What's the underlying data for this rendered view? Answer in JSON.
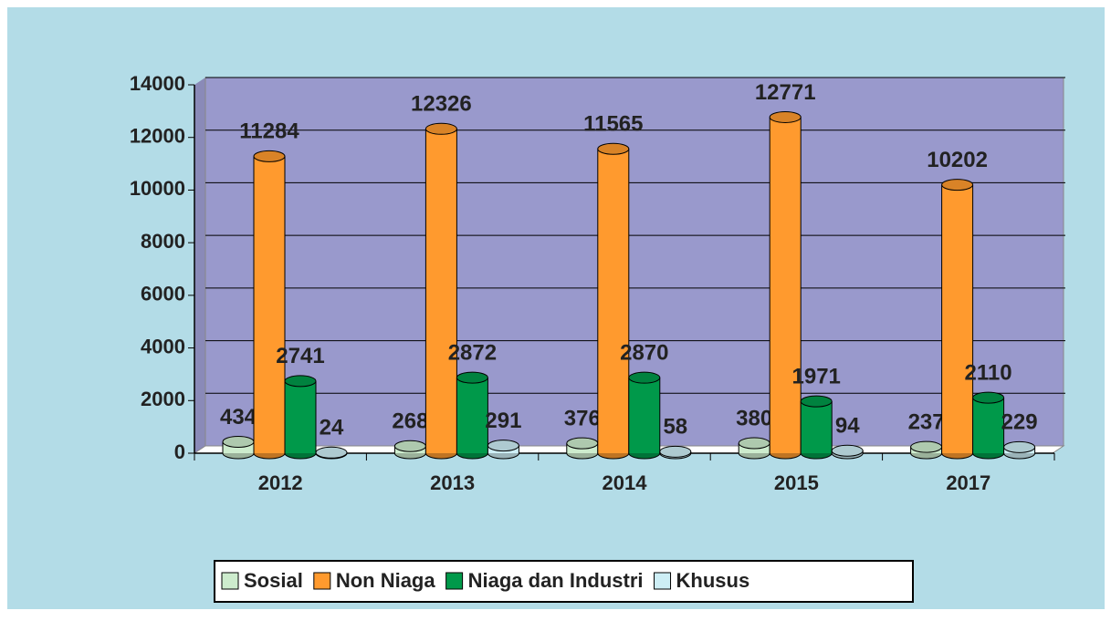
{
  "chart_data": {
    "type": "bar3d",
    "categories": [
      "2012",
      "2013",
      "2014",
      "2015",
      "2017"
    ],
    "series": [
      {
        "name": "Sosial",
        "color": "#cdeccd",
        "values": [
          434,
          268,
          376,
          380,
          237
        ]
      },
      {
        "name": "Non Niaga",
        "color": "#ff9a2e",
        "values": [
          11284,
          12326,
          11565,
          12771,
          10202
        ]
      },
      {
        "name": "Niaga dan Industri",
        "color": "#00994a",
        "values": [
          2741,
          2872,
          2870,
          1971,
          2110
        ]
      },
      {
        "name": "Khusus",
        "color": "#cdeef5",
        "values": [
          24,
          291,
          58,
          94,
          229
        ]
      }
    ],
    "ylim": [
      0,
      14000
    ],
    "yticks": [
      0,
      2000,
      4000,
      6000,
      8000,
      10000,
      12000,
      14000
    ],
    "grid": true
  }
}
